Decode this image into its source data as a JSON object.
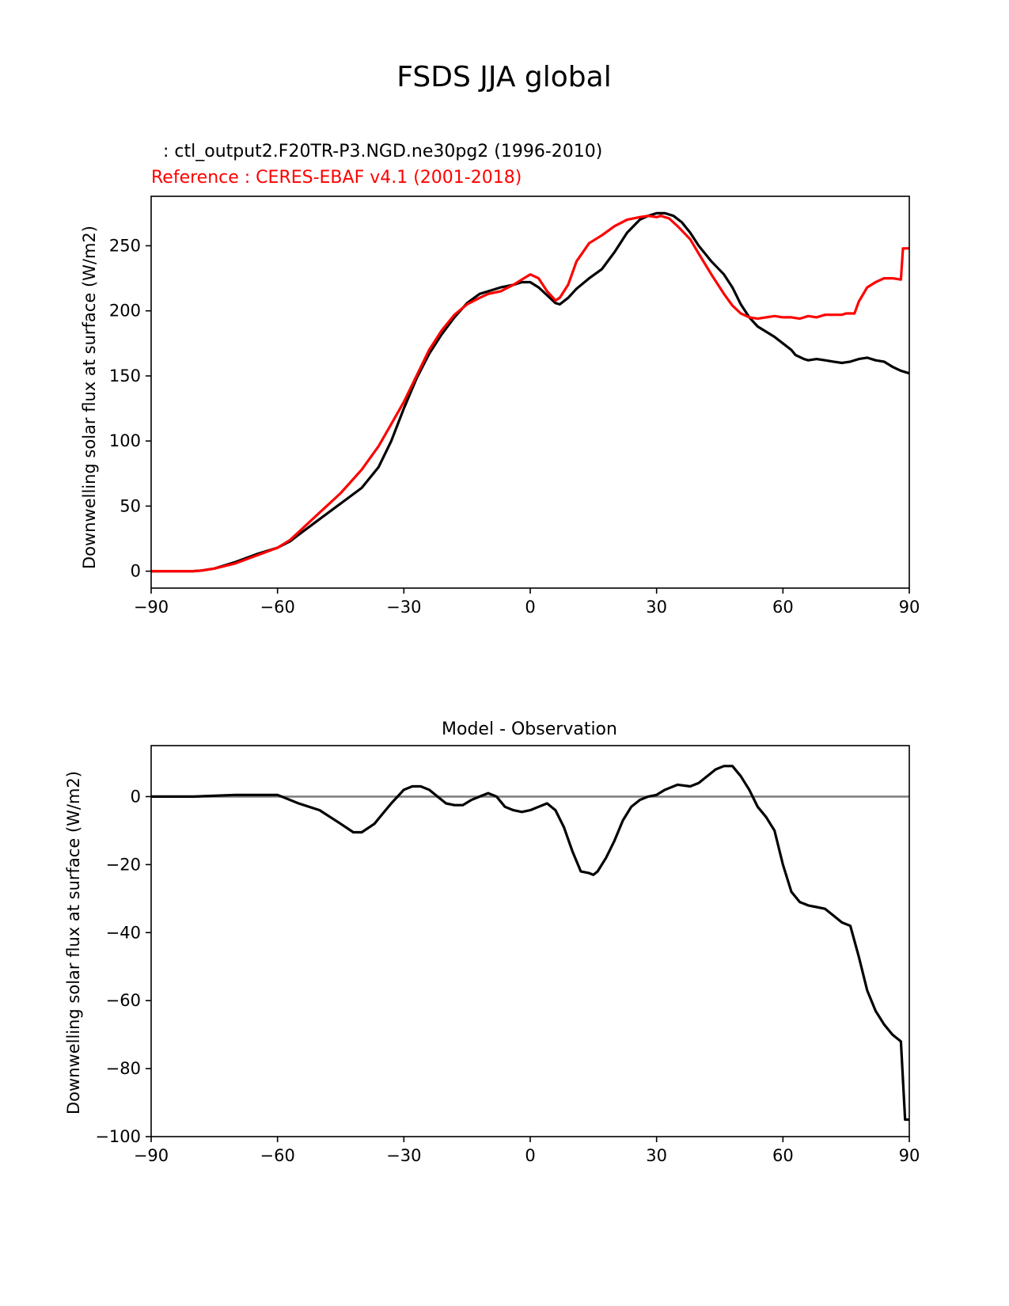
{
  "figure": {
    "title": "FSDS JJA global"
  },
  "chart_data": [
    {
      "type": "line",
      "test_label": ": ctl_output2.F20TR-P3.NGD.ne30pg2 (1996-2010)",
      "reference_label": "Reference : CERES-EBAF v4.1 (2001-2018)",
      "title": "",
      "xlabel": "",
      "ylabel": "Downwelling solar flux at surface (W/m2)",
      "xlim": [
        -90,
        90
      ],
      "ylim": [
        -13,
        288
      ],
      "xticks": [
        -90,
        -60,
        -30,
        0,
        30,
        60,
        90
      ],
      "xtick_labels": [
        "−90",
        "−60",
        "−30",
        "0",
        "30",
        "60",
        "90"
      ],
      "yticks": [
        0,
        50,
        100,
        150,
        200,
        250
      ],
      "ytick_labels": [
        "0",
        "50",
        "100",
        "150",
        "200",
        "250"
      ],
      "grid": false,
      "series": [
        {
          "color": "#000000",
          "x": [
            -90,
            -85,
            -80,
            -78,
            -75,
            -70,
            -65,
            -60,
            -57,
            -55,
            -50,
            -45,
            -40,
            -36,
            -33,
            -30,
            -27,
            -24,
            -21,
            -18,
            -15,
            -12,
            -10,
            -7,
            -4,
            -2,
            0,
            2,
            4,
            6,
            7,
            9,
            11,
            14,
            17,
            20,
            23,
            26,
            28,
            30,
            32,
            34,
            36,
            38,
            40,
            43,
            46,
            48,
            50,
            52,
            54,
            56,
            58,
            60,
            62,
            63,
            65,
            66,
            68,
            70,
            72,
            74,
            76,
            78,
            80,
            82,
            84,
            86,
            88,
            90
          ],
          "y": [
            0,
            0,
            0,
            0.5,
            2,
            7,
            13,
            18,
            23,
            28,
            40,
            52,
            64,
            80,
            100,
            125,
            148,
            167,
            182,
            195,
            206,
            213,
            215,
            218,
            220,
            222,
            222,
            218,
            212,
            206,
            205,
            210,
            217,
            225,
            232,
            245,
            260,
            270,
            273,
            275,
            275,
            273,
            268,
            260,
            250,
            238,
            228,
            218,
            205,
            195,
            188,
            184,
            180,
            175,
            170,
            166,
            163,
            162,
            163,
            162,
            161,
            160,
            161,
            163,
            164,
            162,
            161,
            157,
            154,
            152
          ]
        },
        {
          "color": "#ff0000",
          "x": [
            -90,
            -85,
            -80,
            -78,
            -75,
            -70,
            -65,
            -60,
            -57,
            -55,
            -50,
            -45,
            -40,
            -36,
            -33,
            -30,
            -27,
            -24,
            -21,
            -18,
            -15,
            -12,
            -10,
            -7,
            -4,
            -2,
            0,
            2,
            4,
            6,
            7,
            9,
            11,
            14,
            17,
            20,
            23,
            26,
            28,
            30,
            31,
            33,
            35,
            38,
            40,
            43,
            46,
            48,
            50,
            52,
            54,
            56,
            58,
            60,
            62,
            64,
            66,
            68,
            70,
            72,
            74,
            75,
            77,
            78,
            80,
            82,
            84,
            86,
            88,
            88.5,
            90
          ],
          "y": [
            0,
            0,
            0,
            0.5,
            2,
            6,
            12,
            18,
            24,
            30,
            45,
            60,
            78,
            96,
            113,
            130,
            150,
            170,
            185,
            197,
            205,
            210,
            213,
            215,
            220,
            224,
            228,
            225,
            215,
            208,
            210,
            220,
            238,
            252,
            258,
            265,
            270,
            272,
            273,
            272,
            273,
            271,
            265,
            255,
            244,
            228,
            213,
            204,
            198,
            195,
            194,
            195,
            196,
            195,
            195,
            194,
            196,
            195,
            197,
            197,
            197,
            198,
            198,
            207,
            218,
            222,
            225,
            225,
            224,
            248,
            248
          ]
        }
      ]
    },
    {
      "type": "line",
      "title": "Model - Observation",
      "xlabel": "",
      "ylabel": "Downwelling solar flux at surface (W/m2)",
      "xlim": [
        -90,
        90
      ],
      "ylim": [
        -100,
        15
      ],
      "xticks": [
        -90,
        -60,
        -30,
        0,
        30,
        60,
        90
      ],
      "xtick_labels": [
        "−90",
        "−60",
        "−30",
        "0",
        "30",
        "60",
        "90"
      ],
      "yticks": [
        0,
        -20,
        -40,
        -60,
        -80,
        -100
      ],
      "ytick_labels": [
        "0",
        "−20",
        "−40",
        "−60",
        "−80",
        "−100"
      ],
      "grid": false,
      "zero_line_color": "#808080",
      "series": [
        {
          "color": "#000000",
          "x": [
            -90,
            -80,
            -70,
            -60,
            -57,
            -55,
            -50,
            -45,
            -42,
            -40,
            -37,
            -35,
            -33,
            -30,
            -28,
            -26,
            -24,
            -22,
            -20,
            -18,
            -16,
            -14,
            -12,
            -10,
            -8,
            -6,
            -4,
            -2,
            0,
            2,
            4,
            6,
            8,
            10,
            12,
            14,
            15,
            16,
            17,
            18,
            20,
            22,
            24,
            26,
            28,
            30,
            32,
            35,
            38,
            40,
            42,
            44,
            46,
            48,
            50,
            52,
            54,
            56,
            58,
            60,
            62,
            64,
            66,
            68,
            70,
            72,
            74,
            76,
            78,
            80,
            82,
            84,
            86,
            88,
            89,
            90
          ],
          "y": [
            0,
            0,
            0.5,
            0.5,
            -1,
            -2,
            -4,
            -8,
            -10.5,
            -10.5,
            -8,
            -5,
            -2,
            2,
            3,
            3,
            2,
            0,
            -2,
            -2.5,
            -2.5,
            -1,
            0,
            1,
            0,
            -3,
            -4,
            -4.5,
            -4,
            -3,
            -2,
            -4,
            -9,
            -16,
            -22,
            -22.5,
            -23,
            -22,
            -20,
            -18,
            -13,
            -7,
            -3,
            -1,
            0,
            0.5,
            2,
            3.5,
            3,
            4,
            6,
            8,
            9,
            9,
            6,
            2,
            -3,
            -6,
            -10,
            -20,
            -28,
            -31,
            -32,
            -32.5,
            -33,
            -35,
            -37,
            -38,
            -47,
            -57,
            -63,
            -67,
            -70,
            -72,
            -95,
            -95
          ]
        }
      ]
    }
  ]
}
